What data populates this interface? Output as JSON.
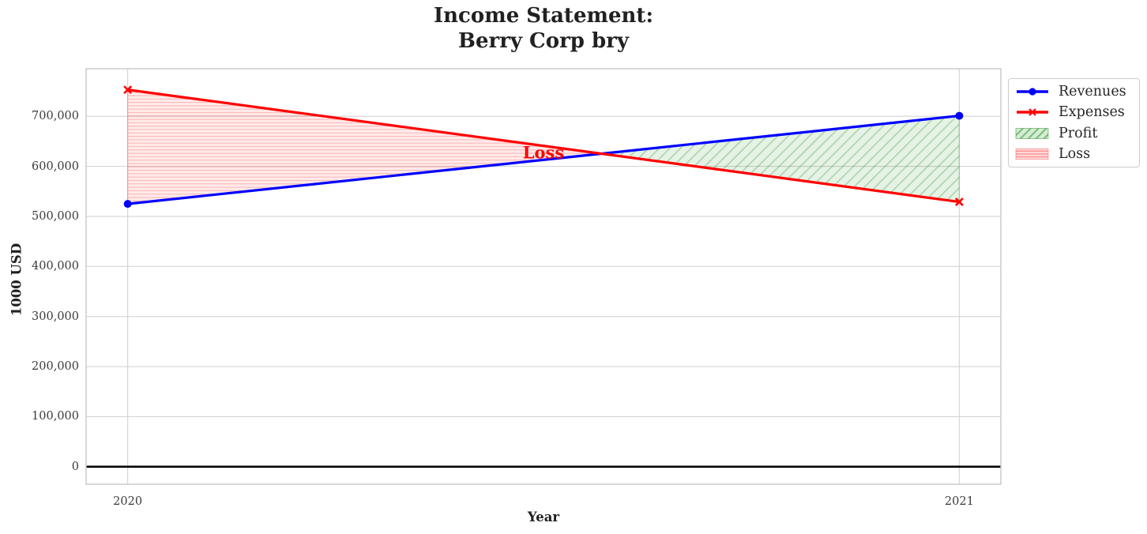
{
  "title_lines": [
    "Income Statement:",
    "Berry Corp bry"
  ],
  "chart_data": {
    "type": "line",
    "title": "Income Statement:\nBerry Corp bry",
    "xlabel": "Year",
    "ylabel": "1000 USD",
    "x": [
      2020,
      2021
    ],
    "series": [
      {
        "name": "Revenues",
        "color": "#0000ff",
        "marker": "circle",
        "values": [
          525000,
          701000
        ]
      },
      {
        "name": "Expenses",
        "color": "#ff0000",
        "marker": "x",
        "values": [
          753000,
          529000
        ]
      }
    ],
    "fill_regions": [
      {
        "name": "Profit",
        "color": "#008000",
        "hatch": "diagonal",
        "where": "revenues > expenses"
      },
      {
        "name": "Loss",
        "color": "#ff0000",
        "hatch": "horizontal",
        "where": "expenses > revenues"
      }
    ],
    "xticks": {
      "values": [
        2020,
        2021
      ],
      "labels": [
        "2020",
        "2021"
      ]
    },
    "yticks": {
      "values": [
        0,
        100000,
        200000,
        300000,
        400000,
        500000,
        600000,
        700000
      ],
      "labels": [
        "0",
        "100,000",
        "200,000",
        "300,000",
        "400,000",
        "500,000",
        "600,000",
        "700,000"
      ]
    },
    "xlim": [
      2019.95,
      2021.05
    ],
    "ylim": [
      -35000,
      795000
    ],
    "zero_line": {
      "y": 0,
      "color": "#000000"
    },
    "grid": true,
    "legend_position": "upper right, outside plot",
    "annotations": [
      {
        "text": "Loss",
        "x": 2020.5,
        "y": 628000,
        "color": "#ff0000"
      }
    ]
  },
  "legend": {
    "items": [
      {
        "label": "Revenues",
        "swatch": "line-circle",
        "color": "#0000ff"
      },
      {
        "label": "Expenses",
        "swatch": "line-x",
        "color": "#ff0000"
      },
      {
        "label": "Profit",
        "swatch": "hatch-diagonal",
        "color": "#008000"
      },
      {
        "label": "Loss",
        "swatch": "hatch-horizontal",
        "color": "#ff0000"
      }
    ]
  },
  "colors": {
    "revenues": "#0000ff",
    "expenses": "#ff0000",
    "profit_fill": "#008000",
    "loss_fill": "#ff0000",
    "gridline": "#d4d4d4",
    "spine": "#c8c8c8",
    "zero_line": "#000000",
    "text": "#262626"
  }
}
